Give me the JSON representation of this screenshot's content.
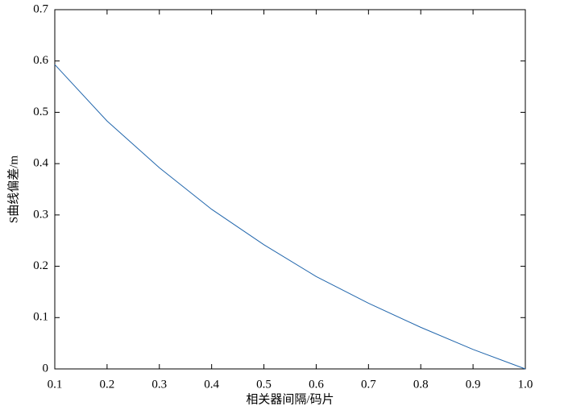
{
  "chart_data": {
    "type": "line",
    "xlabel": "相关器间隔/码片",
    "ylabel": "S曲线偏差/m",
    "x": [
      0.1,
      0.2,
      0.3,
      0.4,
      0.5,
      0.6,
      0.7,
      0.8,
      0.9,
      1.0
    ],
    "series": [
      {
        "name": "S曲线偏差",
        "color": "#2166ac",
        "values": [
          0.593,
          0.483,
          0.392,
          0.311,
          0.242,
          0.18,
          0.128,
          0.081,
          0.038,
          0.0
        ]
      }
    ],
    "xlim": [
      0.1,
      1.0
    ],
    "xticks": [
      0.1,
      0.2,
      0.3,
      0.4,
      0.5,
      0.6,
      0.7,
      0.8,
      0.9,
      {
        "value": 1,
        "label": "1.0"
      }
    ],
    "ylim": [
      0,
      0.7
    ],
    "yticks": [
      0,
      0.1,
      0.2,
      0.3,
      0.4,
      0.5,
      0.6,
      0.7
    ]
  }
}
